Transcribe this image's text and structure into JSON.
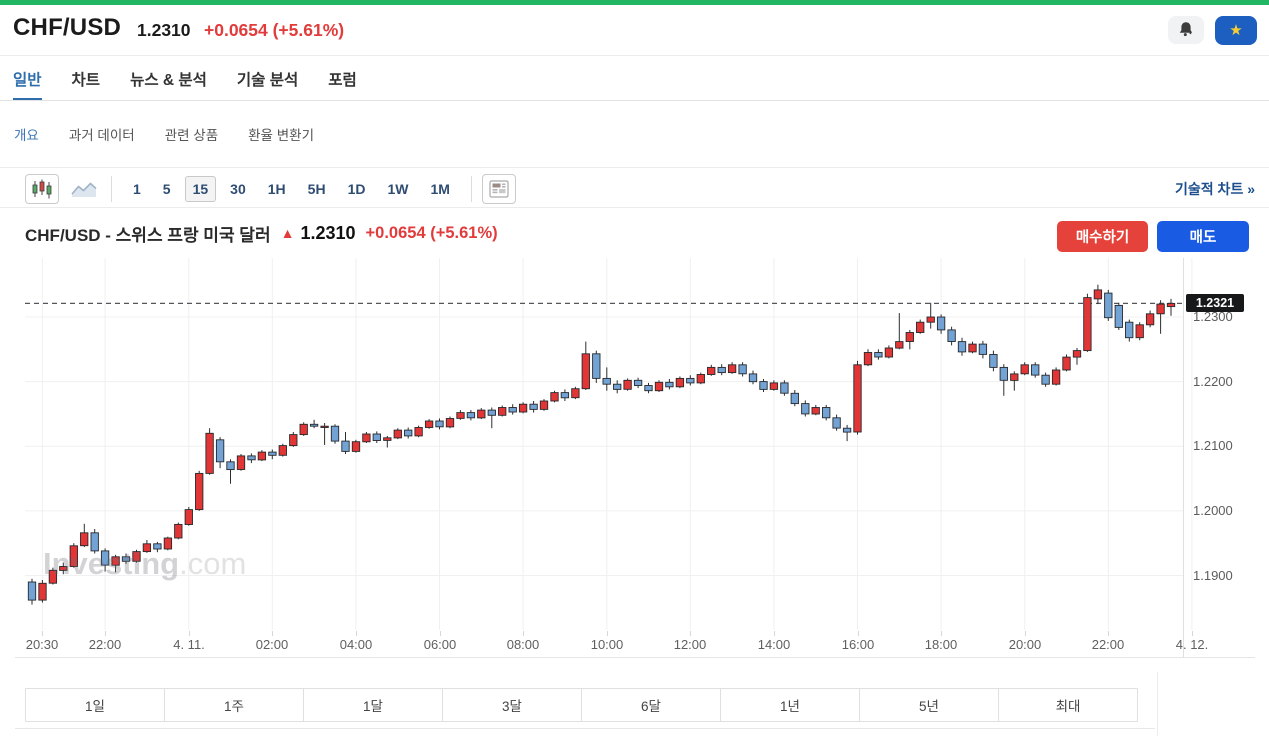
{
  "colors": {
    "topbar_green": "#22b564",
    "text_red": "#e23b3b",
    "buy_red": "#e4423a",
    "sell_blue": "#1a5be3",
    "star_bg_blue": "#1d5fc0",
    "accent_blue": "#2f6dad"
  },
  "header": {
    "symbol": "CHF/USD",
    "price": "1.2310",
    "change": "+0.0654 (+5.61%)",
    "alert_icon": "bell-add-icon",
    "star_glyph": "★"
  },
  "tabs": {
    "active": "일반",
    "items": [
      "일반",
      "차트",
      "뉴스 & 분석",
      "기술 분석",
      "포럼"
    ]
  },
  "subnav": {
    "active": "개요",
    "items": [
      "개요",
      "과거 데이터",
      "관련 상품",
      "환율 변환기"
    ]
  },
  "toolbar": {
    "chart_type_selected": "candlestick",
    "timeframes": [
      "1",
      "5",
      "15",
      "30",
      "1H",
      "5H",
      "1D",
      "1W",
      "1M"
    ],
    "selected_timeframe": "15",
    "technical_chart_link": "기술적 차트 »"
  },
  "chart_header": {
    "title": "CHF/USD - 스위스 프랑 미국 달러",
    "arrow": "▲",
    "price": "1.2310",
    "change": "+0.0654 (+5.61%)",
    "buy_button": "매수하기",
    "sell_button": "매도"
  },
  "periods": {
    "items": [
      "1일",
      "1주",
      "1달",
      "3달",
      "6달",
      "1년",
      "5년",
      "최대"
    ],
    "selected": null
  },
  "chart_data": {
    "type": "candlestick",
    "symbol": "CHF/USD",
    "interval_minutes": 15,
    "current_price": "1.2321",
    "up_color": "#e23636",
    "down_color": "#72a3d4",
    "grid": true,
    "watermark": {
      "bold": "Investing",
      "light": ".com"
    },
    "y_ticks": [
      1.23,
      1.22,
      1.21,
      1.2,
      1.19
    ],
    "x_labels": [
      {
        "i": 1,
        "t": "20:30"
      },
      {
        "i": 7,
        "t": "22:00"
      },
      {
        "i": 15,
        "t": "4. 11."
      },
      {
        "i": 23,
        "t": "02:00"
      },
      {
        "i": 31,
        "t": "04:00"
      },
      {
        "i": 39,
        "t": "06:00"
      },
      {
        "i": 47,
        "t": "08:00"
      },
      {
        "i": 55,
        "t": "10:00"
      },
      {
        "i": 63,
        "t": "12:00"
      },
      {
        "i": 71,
        "t": "14:00"
      },
      {
        "i": 79,
        "t": "16:00"
      },
      {
        "i": 87,
        "t": "18:00"
      },
      {
        "i": 95,
        "t": "20:00"
      },
      {
        "i": 103,
        "t": "22:00"
      },
      {
        "i": 111,
        "t": "4. 12."
      }
    ],
    "ohlc_format": [
      "open",
      "high",
      "low",
      "close"
    ],
    "candles": [
      [
        1.189,
        1.1895,
        1.1855,
        1.1862
      ],
      [
        1.1862,
        1.1893,
        1.1858,
        1.1888
      ],
      [
        1.1888,
        1.1912,
        1.1886,
        1.1908
      ],
      [
        1.1908,
        1.192,
        1.1902,
        1.1914
      ],
      [
        1.1914,
        1.195,
        1.1912,
        1.1946
      ],
      [
        1.1946,
        1.198,
        1.1944,
        1.1966
      ],
      [
        1.1966,
        1.1972,
        1.1934,
        1.1938
      ],
      [
        1.1938,
        1.1942,
        1.1906,
        1.1916
      ],
      [
        1.1916,
        1.1932,
        1.1905,
        1.1929
      ],
      [
        1.1929,
        1.1934,
        1.1918,
        1.1922
      ],
      [
        1.1922,
        1.194,
        1.192,
        1.1937
      ],
      [
        1.1937,
        1.1955,
        1.1935,
        1.1949
      ],
      [
        1.1949,
        1.1952,
        1.1936,
        1.1941
      ],
      [
        1.1941,
        1.196,
        1.1939,
        1.1958
      ],
      [
        1.1958,
        1.1982,
        1.1956,
        1.1979
      ],
      [
        1.1979,
        1.2006,
        1.1977,
        1.2002
      ],
      [
        1.2002,
        1.2062,
        1.2,
        1.2058
      ],
      [
        1.2058,
        1.2128,
        1.2056,
        1.212
      ],
      [
        1.211,
        1.2114,
        1.2066,
        1.2076
      ],
      [
        1.2076,
        1.208,
        1.2042,
        1.2064
      ],
      [
        1.2064,
        1.2088,
        1.2062,
        1.2085
      ],
      [
        1.2085,
        1.2089,
        1.2074,
        1.2079
      ],
      [
        1.2079,
        1.2094,
        1.2077,
        1.2091
      ],
      [
        1.2091,
        1.2095,
        1.208,
        1.2086
      ],
      [
        1.2086,
        1.2104,
        1.2084,
        1.2101
      ],
      [
        1.2101,
        1.2122,
        1.2099,
        1.2118
      ],
      [
        1.2118,
        1.2137,
        1.2116,
        1.2134
      ],
      [
        1.2134,
        1.2141,
        1.2128,
        1.2131
      ],
      [
        1.2129,
        1.2136,
        1.2102,
        1.2131
      ],
      [
        1.2131,
        1.2134,
        1.2104,
        1.2108
      ],
      [
        1.2108,
        1.2122,
        1.2088,
        1.2092
      ],
      [
        1.2092,
        1.211,
        1.209,
        1.2107
      ],
      [
        1.2107,
        1.2122,
        1.2105,
        1.2119
      ],
      [
        1.2119,
        1.2123,
        1.2105,
        1.2109
      ],
      [
        1.2109,
        1.2116,
        1.2098,
        1.2113
      ],
      [
        1.2113,
        1.2128,
        1.2111,
        1.2125
      ],
      [
        1.2125,
        1.2129,
        1.2112,
        1.2116
      ],
      [
        1.2116,
        1.2132,
        1.2114,
        1.2129
      ],
      [
        1.2129,
        1.2142,
        1.2127,
        1.2139
      ],
      [
        1.2139,
        1.2143,
        1.2126,
        1.213
      ],
      [
        1.213,
        1.2146,
        1.2128,
        1.2143
      ],
      [
        1.2143,
        1.2156,
        1.2141,
        1.2152
      ],
      [
        1.2152,
        1.2156,
        1.214,
        1.2144
      ],
      [
        1.2144,
        1.2159,
        1.2142,
        1.2156
      ],
      [
        1.2156,
        1.216,
        1.2128,
        1.2148
      ],
      [
        1.2148,
        1.2163,
        1.2146,
        1.216
      ],
      [
        1.216,
        1.2165,
        1.2149,
        1.2153
      ],
      [
        1.2153,
        1.2168,
        1.2151,
        1.2165
      ],
      [
        1.2165,
        1.217,
        1.2152,
        1.2157
      ],
      [
        1.2157,
        1.2173,
        1.2155,
        1.217
      ],
      [
        1.217,
        1.2186,
        1.2168,
        1.2183
      ],
      [
        1.2183,
        1.2188,
        1.217,
        1.2175
      ],
      [
        1.2175,
        1.2192,
        1.2173,
        1.2189
      ],
      [
        1.2189,
        1.2262,
        1.2187,
        1.2243
      ],
      [
        1.2243,
        1.2248,
        1.2198,
        1.2205
      ],
      [
        1.2205,
        1.2222,
        1.2186,
        1.2196
      ],
      [
        1.2196,
        1.2202,
        1.2182,
        1.2188
      ],
      [
        1.2188,
        1.2205,
        1.2186,
        1.2202
      ],
      [
        1.2202,
        1.2206,
        1.219,
        1.2194
      ],
      [
        1.2194,
        1.2198,
        1.2182,
        1.2186
      ],
      [
        1.2186,
        1.2202,
        1.2184,
        1.2199
      ],
      [
        1.2199,
        1.2204,
        1.2188,
        1.2192
      ],
      [
        1.2192,
        1.2208,
        1.219,
        1.2205
      ],
      [
        1.2205,
        1.221,
        1.2194,
        1.2198
      ],
      [
        1.2198,
        1.2214,
        1.2196,
        1.2211
      ],
      [
        1.2211,
        1.2226,
        1.2209,
        1.2222
      ],
      [
        1.2222,
        1.2227,
        1.221,
        1.2214
      ],
      [
        1.2214,
        1.223,
        1.2212,
        1.2226
      ],
      [
        1.2226,
        1.223,
        1.2208,
        1.2212
      ],
      [
        1.2212,
        1.2217,
        1.2196,
        1.22
      ],
      [
        1.22,
        1.2204,
        1.2184,
        1.2188
      ],
      [
        1.2188,
        1.2202,
        1.2186,
        1.2198
      ],
      [
        1.2198,
        1.2202,
        1.2178,
        1.2182
      ],
      [
        1.2182,
        1.2187,
        1.2162,
        1.2166
      ],
      [
        1.2166,
        1.2171,
        1.2146,
        1.215
      ],
      [
        1.215,
        1.2164,
        1.2148,
        1.216
      ],
      [
        1.216,
        1.2164,
        1.214,
        1.2144
      ],
      [
        1.2144,
        1.2149,
        1.2124,
        1.2128
      ],
      [
        1.2128,
        1.2133,
        1.2108,
        1.2122
      ],
      [
        1.2122,
        1.2232,
        1.2118,
        1.2226
      ],
      [
        1.2226,
        1.225,
        1.2224,
        1.2245
      ],
      [
        1.2245,
        1.225,
        1.2234,
        1.2238
      ],
      [
        1.2238,
        1.2256,
        1.2236,
        1.2252
      ],
      [
        1.2252,
        1.2306,
        1.225,
        1.2262
      ],
      [
        1.2262,
        1.228,
        1.225,
        1.2276
      ],
      [
        1.2276,
        1.2296,
        1.2274,
        1.2292
      ],
      [
        1.2292,
        1.2322,
        1.2282,
        1.23
      ],
      [
        1.23,
        1.2304,
        1.2274,
        1.228
      ],
      [
        1.228,
        1.2285,
        1.2256,
        1.2262
      ],
      [
        1.2262,
        1.2268,
        1.224,
        1.2246
      ],
      [
        1.2246,
        1.2262,
        1.2244,
        1.2258
      ],
      [
        1.2258,
        1.2263,
        1.2236,
        1.2242
      ],
      [
        1.2242,
        1.2248,
        1.2216,
        1.2222
      ],
      [
        1.2222,
        1.2227,
        1.2178,
        1.2202
      ],
      [
        1.2202,
        1.2216,
        1.2186,
        1.2212
      ],
      [
        1.2212,
        1.223,
        1.221,
        1.2226
      ],
      [
        1.2226,
        1.223,
        1.2206,
        1.221
      ],
      [
        1.221,
        1.2214,
        1.2192,
        1.2196
      ],
      [
        1.2196,
        1.2222,
        1.2194,
        1.2218
      ],
      [
        1.2218,
        1.2242,
        1.2216,
        1.2238
      ],
      [
        1.2238,
        1.2252,
        1.2226,
        1.2248
      ],
      [
        1.2248,
        1.2336,
        1.2246,
        1.233
      ],
      [
        1.2328,
        1.235,
        1.232,
        1.2342
      ],
      [
        1.2337,
        1.2342,
        1.2294,
        1.2299
      ],
      [
        1.2318,
        1.2322,
        1.228,
        1.2284
      ],
      [
        1.2292,
        1.2296,
        1.2262,
        1.2268
      ],
      [
        1.2268,
        1.2292,
        1.2264,
        1.2288
      ],
      [
        1.2288,
        1.231,
        1.2284,
        1.2305
      ],
      [
        1.2305,
        1.2326,
        1.2274,
        1.232
      ],
      [
        1.2316,
        1.2328,
        1.2302,
        1.2321
      ]
    ]
  }
}
